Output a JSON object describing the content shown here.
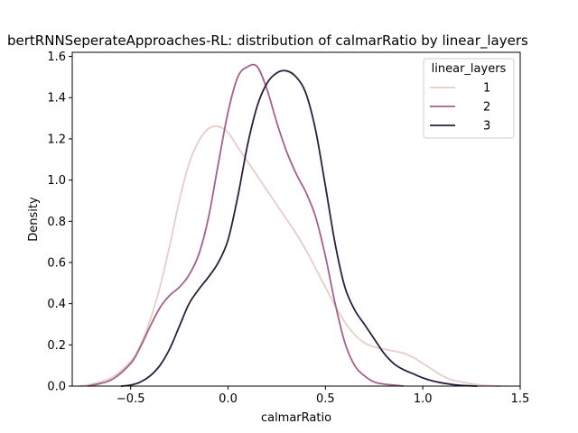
{
  "chart_data": {
    "type": "line",
    "title": "bertRNNSeperateApproaches-RL: distribution of calmarRatio by linear_layers",
    "xlabel": "calmarRatio",
    "ylabel": "Density",
    "xlim": [
      -0.8,
      1.5
    ],
    "ylim": [
      0,
      1.62
    ],
    "xticks": [
      -0.5,
      0.0,
      0.5,
      1.0,
      1.5
    ],
    "xtick_labels": [
      "−0.5",
      "0.0",
      "0.5",
      "1.0",
      "1.5"
    ],
    "yticks": [
      0.0,
      0.2,
      0.4,
      0.6,
      0.8,
      1.0,
      1.2,
      1.4,
      1.6
    ],
    "ytick_labels": [
      "0.0",
      "0.2",
      "0.4",
      "0.6",
      "0.8",
      "1.0",
      "1.2",
      "1.4",
      "1.6"
    ],
    "grid": false,
    "legend": {
      "title": "linear_layers",
      "placement": "top-right"
    },
    "series": [
      {
        "name": "1",
        "color": "#e8cdc8",
        "x": [
          -0.76,
          -0.7,
          -0.6,
          -0.5,
          -0.45,
          -0.4,
          -0.35,
          -0.3,
          -0.25,
          -0.2,
          -0.15,
          -0.1,
          -0.05,
          0.0,
          0.05,
          0.1,
          0.15,
          0.2,
          0.25,
          0.3,
          0.35,
          0.4,
          0.45,
          0.5,
          0.55,
          0.6,
          0.65,
          0.7,
          0.75,
          0.8,
          0.85,
          0.9,
          0.95,
          1.0,
          1.05,
          1.1,
          1.15,
          1.2,
          1.3,
          1.4
        ],
        "y": [
          0.0,
          0.01,
          0.04,
          0.12,
          0.2,
          0.32,
          0.48,
          0.68,
          0.9,
          1.08,
          1.19,
          1.25,
          1.26,
          1.23,
          1.16,
          1.09,
          1.02,
          0.95,
          0.88,
          0.81,
          0.74,
          0.66,
          0.57,
          0.48,
          0.39,
          0.31,
          0.25,
          0.21,
          0.19,
          0.18,
          0.17,
          0.16,
          0.14,
          0.11,
          0.08,
          0.05,
          0.03,
          0.02,
          0.005,
          0.0
        ]
      },
      {
        "name": "2",
        "color": "#a3618e",
        "x": [
          -0.72,
          -0.6,
          -0.5,
          -0.45,
          -0.4,
          -0.35,
          -0.3,
          -0.25,
          -0.2,
          -0.15,
          -0.1,
          -0.05,
          0.0,
          0.05,
          0.1,
          0.15,
          0.2,
          0.25,
          0.3,
          0.35,
          0.4,
          0.45,
          0.5,
          0.55,
          0.6,
          0.65,
          0.7,
          0.75,
          0.8,
          0.85,
          0.9
        ],
        "y": [
          0.0,
          0.03,
          0.11,
          0.19,
          0.29,
          0.38,
          0.44,
          0.48,
          0.54,
          0.64,
          0.82,
          1.08,
          1.33,
          1.5,
          1.55,
          1.55,
          1.44,
          1.28,
          1.14,
          1.03,
          0.94,
          0.82,
          0.63,
          0.4,
          0.21,
          0.1,
          0.05,
          0.02,
          0.01,
          0.005,
          0.0
        ]
      },
      {
        "name": "3",
        "color": "#2d1e3e",
        "x": [
          -0.55,
          -0.5,
          -0.45,
          -0.4,
          -0.35,
          -0.3,
          -0.25,
          -0.2,
          -0.15,
          -0.1,
          -0.05,
          0.0,
          0.05,
          0.1,
          0.15,
          0.2,
          0.25,
          0.3,
          0.35,
          0.4,
          0.45,
          0.5,
          0.55,
          0.6,
          0.65,
          0.7,
          0.75,
          0.8,
          0.85,
          0.9,
          0.95,
          1.0,
          1.05,
          1.1,
          1.15,
          1.2,
          1.28
        ],
        "y": [
          0.0,
          0.005,
          0.02,
          0.05,
          0.1,
          0.18,
          0.29,
          0.4,
          0.47,
          0.53,
          0.6,
          0.71,
          0.92,
          1.17,
          1.36,
          1.47,
          1.52,
          1.53,
          1.5,
          1.42,
          1.24,
          0.97,
          0.69,
          0.48,
          0.37,
          0.3,
          0.23,
          0.16,
          0.11,
          0.08,
          0.06,
          0.04,
          0.025,
          0.015,
          0.008,
          0.003,
          0.0
        ]
      }
    ]
  }
}
